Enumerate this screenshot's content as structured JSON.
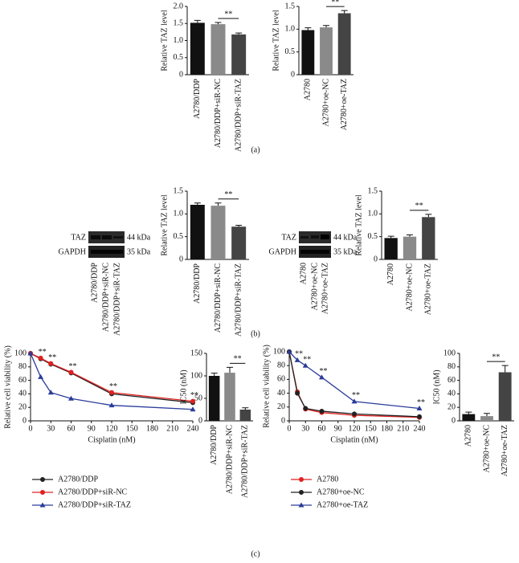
{
  "chart_data": [
    {
      "type": "bar",
      "ylabel": "Relative TAZ level",
      "categories": [
        "A2780/DDP",
        "A2780/DDP+siR-NC",
        "A2780/DDP+siR-TAZ"
      ],
      "values": [
        1.52,
        1.48,
        1.18
      ],
      "errors": [
        0.07,
        0.05,
        0.04
      ],
      "colors": [
        "#111111",
        "#8a8a8a",
        "#444444"
      ],
      "ylim": [
        0,
        2
      ],
      "yticks": [
        0,
        0.5,
        {
          "value": 1,
          "label": "1.0"
        },
        1.5,
        {
          "value": 2,
          "label": "2.0"
        }
      ],
      "annotation": "**"
    },
    {
      "type": "bar",
      "ylabel": "Relative TAZ level",
      "categories": [
        "A2780",
        "A2780+oe-NC",
        "A2780+oe-TAZ"
      ],
      "values": [
        0.98,
        1.04,
        1.35
      ],
      "errors": [
        0.05,
        0.04,
        0.06
      ],
      "colors": [
        "#111111",
        "#8a8a8a",
        "#444444"
      ],
      "ylim": [
        0,
        1.5
      ],
      "yticks": [
        0,
        0.5,
        {
          "value": 1,
          "label": "1.0"
        },
        1.5
      ],
      "annotation": "**"
    },
    {
      "type": "bar",
      "ylabel": "Relative TAZ level",
      "categories": [
        "A2780/DDP",
        "A2780/DDP+siR-NC",
        "A2780/DDP+siR-TAZ"
      ],
      "values": [
        1.2,
        1.18,
        0.72
      ],
      "errors": [
        0.04,
        0.06,
        0.03
      ],
      "colors": [
        "#111111",
        "#8a8a8a",
        "#444444"
      ],
      "ylim": [
        0,
        1.5
      ],
      "yticks": [
        0,
        0.5,
        {
          "value": 1,
          "label": "1.0"
        },
        1.5
      ],
      "annotation": "**"
    },
    {
      "type": "bar",
      "ylabel": "Relative TAZ level",
      "categories": [
        "A2780",
        "A2780+oe-NC",
        "A2780+oe-TAZ"
      ],
      "values": [
        0.47,
        0.5,
        0.93
      ],
      "errors": [
        0.04,
        0.04,
        0.06
      ],
      "colors": [
        "#111111",
        "#8a8a8a",
        "#444444"
      ],
      "ylim": [
        0,
        1.5
      ],
      "yticks": [
        0,
        0.5,
        {
          "value": 1,
          "label": "1.0"
        },
        1.5
      ],
      "annotation": "**"
    },
    {
      "type": "line",
      "xlabel": "Cisplatin (nM)",
      "ylabel": "Relative cell viability (%)",
      "x": [
        0,
        15,
        30,
        60,
        120,
        240
      ],
      "series": [
        {
          "name": "A2780/DDP",
          "color": "#222222",
          "marker": "circle",
          "values": [
            100,
            92,
            84,
            71,
            40,
            27
          ]
        },
        {
          "name": "A2780/DDP+siR-NC",
          "color": "#e02020",
          "marker": "circle",
          "values": [
            100,
            93,
            85,
            72,
            42,
            29
          ]
        },
        {
          "name": "A2780/DDP+siR-TAZ",
          "color": "#2a3c9a",
          "marker": "triangle",
          "values": [
            100,
            65,
            42,
            33,
            23,
            17
          ]
        }
      ],
      "xlim": [
        0,
        240
      ],
      "xticks": [
        0,
        30,
        60,
        90,
        120,
        150,
        180,
        210,
        240
      ],
      "ylim": [
        0,
        100
      ],
      "yticks": [
        0,
        20,
        40,
        60,
        80,
        100
      ],
      "annotation": "**"
    },
    {
      "type": "bar",
      "ylabel": "IC50 (nM)",
      "categories": [
        "A2780/DDP",
        "A2780/DDP+siR-NC",
        "A2780/DDP+siR-TAZ"
      ],
      "values": [
        100,
        107,
        25
      ],
      "errors": [
        6,
        12,
        4
      ],
      "colors": [
        "#111111",
        "#8a8a8a",
        "#444444"
      ],
      "ylim": [
        0,
        150
      ],
      "yticks": [
        0,
        50,
        100,
        150
      ],
      "annotation": "**"
    },
    {
      "type": "line",
      "xlabel": "Cisplatin (nM)",
      "ylabel": "Relative cell viability (%)",
      "x": [
        0,
        15,
        30,
        60,
        120,
        240
      ],
      "series": [
        {
          "name": "A2780",
          "color": "#e02020",
          "marker": "circle",
          "values": [
            100,
            42,
            17,
            12,
            8,
            5
          ]
        },
        {
          "name": "A2780+oe-NC",
          "color": "#222222",
          "marker": "circle",
          "values": [
            100,
            40,
            18,
            14,
            10,
            6
          ]
        },
        {
          "name": "A2780+oe-TAZ",
          "color": "#2a3c9a",
          "marker": "triangle",
          "values": [
            100,
            88,
            80,
            63,
            28,
            18
          ]
        }
      ],
      "xlim": [
        0,
        240
      ],
      "xticks": [
        0,
        30,
        60,
        90,
        120,
        150,
        180,
        210,
        240
      ],
      "ylim": [
        0,
        100
      ],
      "yticks": [
        0,
        20,
        40,
        60,
        80,
        100
      ],
      "annotation": "**"
    },
    {
      "type": "bar",
      "ylabel": "IC50 (nM)",
      "categories": [
        "A2780",
        "A2780+oe-NC",
        "A2780+oe-TAZ"
      ],
      "values": [
        10,
        7,
        72
      ],
      "errors": [
        3,
        4,
        10
      ],
      "colors": [
        "#111111",
        "#8a8a8a",
        "#444444"
      ],
      "ylim": [
        0,
        100
      ],
      "yticks": [
        0,
        20,
        40,
        60,
        80,
        100
      ],
      "annotation": "**"
    }
  ],
  "blots": [
    {
      "rows": [
        {
          "label": "TAZ",
          "size": "44 kDa"
        },
        {
          "label": "GAPDH",
          "size": "35 kDa"
        }
      ],
      "lanes": [
        "A2780/DDP",
        "A2780/DDP+siR-NC",
        "A2780/DDP+siR-TAZ"
      ]
    },
    {
      "rows": [
        {
          "label": "TAZ",
          "size": "44 kDa"
        },
        {
          "label": "GAPDH",
          "size": "35 kDa"
        }
      ],
      "lanes": [
        "A2780",
        "A2780+oe-NC",
        "A2780+oe-TAZ"
      ]
    }
  ],
  "panel_labels": [
    "(a)",
    "(b)",
    "(c)"
  ]
}
